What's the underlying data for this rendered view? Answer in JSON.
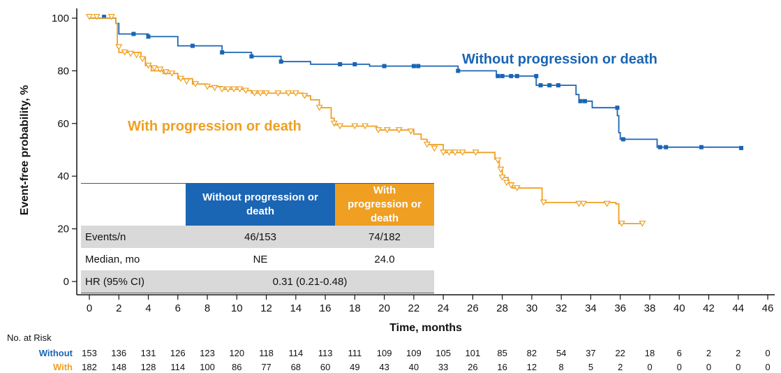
{
  "chart_data": {
    "type": "line",
    "subtype": "kaplan-meier",
    "xlabel": "Time, months",
    "ylabel": "Event-free probability, %",
    "xlim": [
      0,
      46
    ],
    "ylim": [
      0,
      100
    ],
    "xticks": [
      0,
      2,
      4,
      6,
      8,
      10,
      12,
      14,
      16,
      18,
      20,
      22,
      24,
      26,
      28,
      30,
      32,
      34,
      36,
      38,
      40,
      42,
      44,
      46
    ],
    "yticks": [
      0,
      20,
      40,
      60,
      80,
      100
    ],
    "grid": false,
    "colors": {
      "without": "#1a65b4",
      "with": "#ef9f22"
    },
    "series": [
      {
        "name": "Without progression or death",
        "color": "#1a65b4",
        "marker": "square",
        "steps": [
          [
            0,
            100
          ],
          [
            1.8,
            98
          ],
          [
            2,
            94
          ],
          [
            4,
            93
          ],
          [
            6,
            89.5
          ],
          [
            9,
            87
          ],
          [
            11,
            85.5
          ],
          [
            13,
            83.5
          ],
          [
            15,
            82.5
          ],
          [
            19,
            81.8
          ],
          [
            25,
            80
          ],
          [
            27.6,
            78
          ],
          [
            30.3,
            74.5
          ],
          [
            33,
            71
          ],
          [
            33.2,
            68.5
          ],
          [
            34.1,
            66
          ],
          [
            35.8,
            63
          ],
          [
            35.9,
            56.5
          ],
          [
            36,
            54
          ],
          [
            38.5,
            51
          ],
          [
            44.2,
            50.7
          ]
        ],
        "censor": [
          [
            1,
            100.5
          ],
          [
            3,
            94
          ],
          [
            4,
            93
          ],
          [
            7,
            89.5
          ],
          [
            9,
            87
          ],
          [
            11,
            85.5
          ],
          [
            13,
            83.5
          ],
          [
            17,
            82.5
          ],
          [
            18,
            82.5
          ],
          [
            20,
            81.8
          ],
          [
            22,
            81.8
          ],
          [
            22.3,
            81.8
          ],
          [
            25,
            80
          ],
          [
            27.7,
            78
          ],
          [
            28,
            78
          ],
          [
            28.6,
            78
          ],
          [
            29,
            78
          ],
          [
            30.3,
            78
          ],
          [
            30.6,
            74.5
          ],
          [
            31.2,
            74.5
          ],
          [
            31.8,
            74.5
          ],
          [
            33.3,
            68.5
          ],
          [
            33.6,
            68.5
          ],
          [
            35.8,
            66
          ],
          [
            36.2,
            54
          ],
          [
            38.7,
            51
          ],
          [
            39.1,
            51
          ],
          [
            41.5,
            51
          ],
          [
            44.2,
            50.7
          ]
        ]
      },
      {
        "name": "With progression or death",
        "color": "#ef9f22",
        "marker": "triangle-down",
        "steps": [
          [
            0,
            100
          ],
          [
            1.8,
            98
          ],
          [
            1.9,
            89
          ],
          [
            2,
            87
          ],
          [
            3.5,
            85
          ],
          [
            3.8,
            82
          ],
          [
            4.2,
            80
          ],
          [
            5,
            79
          ],
          [
            6,
            77
          ],
          [
            7,
            75
          ],
          [
            8,
            74
          ],
          [
            9,
            73
          ],
          [
            10.5,
            72.5
          ],
          [
            11,
            71.5
          ],
          [
            14.5,
            70.5
          ],
          [
            15,
            69
          ],
          [
            15.6,
            66
          ],
          [
            16.4,
            62
          ],
          [
            16.6,
            59.5
          ],
          [
            17,
            59
          ],
          [
            19.5,
            57.5
          ],
          [
            22,
            56
          ],
          [
            22.5,
            54
          ],
          [
            22.9,
            52
          ],
          [
            24,
            49
          ],
          [
            26,
            49
          ],
          [
            27.5,
            46.5
          ],
          [
            27.8,
            43
          ],
          [
            28,
            39.5
          ],
          [
            28.4,
            37.5
          ],
          [
            28.7,
            35.5
          ],
          [
            30.7,
            30
          ],
          [
            35.7,
            29.5
          ],
          [
            35.9,
            22
          ],
          [
            37.5,
            22
          ]
        ],
        "censor": [
          [
            0,
            100.5
          ],
          [
            0.5,
            100.5
          ],
          [
            1.5,
            100.5
          ],
          [
            2,
            89
          ],
          [
            2.4,
            87
          ],
          [
            2.8,
            86.5
          ],
          [
            3.2,
            86
          ],
          [
            3.6,
            84.5
          ],
          [
            4,
            82
          ],
          [
            4.4,
            81
          ],
          [
            4.8,
            80.5
          ],
          [
            5.2,
            79.5
          ],
          [
            5.6,
            79
          ],
          [
            6.2,
            77
          ],
          [
            6.6,
            76
          ],
          [
            7.2,
            75
          ],
          [
            8,
            74
          ],
          [
            8.5,
            73.5
          ],
          [
            9,
            73
          ],
          [
            9.4,
            73
          ],
          [
            9.8,
            73
          ],
          [
            10.2,
            73
          ],
          [
            10.6,
            72.5
          ],
          [
            11.2,
            71.5
          ],
          [
            11.6,
            71.5
          ],
          [
            12,
            71.5
          ],
          [
            12.8,
            71.5
          ],
          [
            13.5,
            71.5
          ],
          [
            14,
            71.5
          ],
          [
            14.6,
            70.5
          ],
          [
            15.6,
            66
          ],
          [
            16.6,
            60
          ],
          [
            17,
            59
          ],
          [
            18,
            59
          ],
          [
            18.7,
            59
          ],
          [
            19.6,
            57.5
          ],
          [
            20.2,
            57.5
          ],
          [
            21,
            57.5
          ],
          [
            21.8,
            57
          ],
          [
            22.9,
            52
          ],
          [
            23.4,
            50.5
          ],
          [
            24,
            49
          ],
          [
            24.4,
            49
          ],
          [
            24.8,
            49
          ],
          [
            25.3,
            49
          ],
          [
            26.2,
            49
          ],
          [
            27.7,
            46
          ],
          [
            27.9,
            42.5
          ],
          [
            28,
            39.5
          ],
          [
            28.3,
            37.5
          ],
          [
            28.6,
            36.5
          ],
          [
            29,
            35.5
          ],
          [
            30.8,
            30
          ],
          [
            33.2,
            29.5
          ],
          [
            33.5,
            29.5
          ],
          [
            35.1,
            29.5
          ],
          [
            36.1,
            22
          ],
          [
            37.5,
            22
          ]
        ]
      }
    ],
    "annotations": {
      "without": "Without progression or death",
      "with": "With progression or death"
    },
    "risk_table": {
      "title": "No. at Risk",
      "rows": [
        {
          "name": "Without",
          "color": "#1a65b4",
          "values": [
            153,
            136,
            131,
            126,
            123,
            120,
            118,
            114,
            113,
            111,
            109,
            109,
            105,
            101,
            85,
            82,
            54,
            37,
            22,
            18,
            6,
            2,
            2,
            0
          ]
        },
        {
          "name": "With",
          "color": "#ef9f22",
          "values": [
            182,
            148,
            128,
            114,
            100,
            86,
            77,
            68,
            60,
            49,
            43,
            40,
            33,
            26,
            16,
            12,
            8,
            5,
            2,
            0,
            0,
            0,
            0,
            0
          ]
        }
      ]
    }
  },
  "summary_table": {
    "headers": {
      "without": "Without progression or death",
      "with": "With progression or death"
    },
    "rows": [
      {
        "label": "Events/n",
        "without": "46/153",
        "with": "74/182"
      },
      {
        "label": "Median, mo",
        "without": "NE",
        "with": "24.0"
      },
      {
        "label": "HR (95% CI)",
        "combined": "0.31 (0.21-0.48)"
      }
    ]
  }
}
